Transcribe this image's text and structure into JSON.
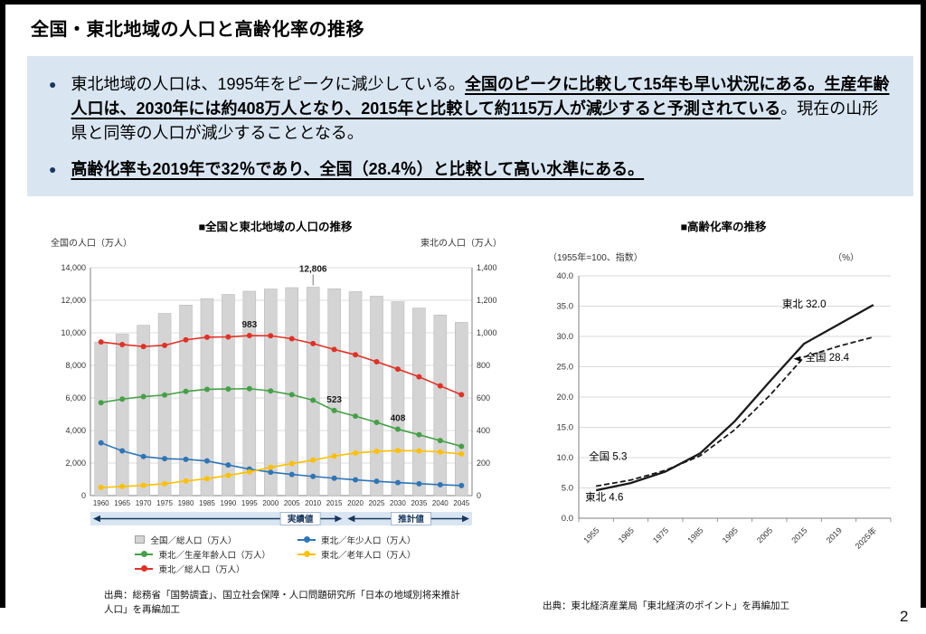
{
  "page": {
    "number": "2"
  },
  "title": "全国・東北地域の人口と高齢化率の推移",
  "colors": {
    "summary_bg": "#d9e6f2",
    "bullet": "#17375e"
  },
  "summary": {
    "bullet_glyph": "●",
    "bullets": [
      {
        "segments": [
          {
            "text": "東北地域の人口は、1995年をピークに減少している。",
            "emphasis": false
          },
          {
            "text": "全国のピークに比較して15年も早い状況にある。",
            "emphasis": true
          },
          {
            "text": "生産年齢人口は、2030年には約408万人となり、2015年と比較して約115万人が減少すると予測されている",
            "emphasis": true
          },
          {
            "text": "。現在の山形県と同等の人口が減少することとなる。",
            "emphasis": false
          }
        ]
      },
      {
        "segments": [
          {
            "text": "高齢化率も2019年で32％であり、全国（28.4％）と比較して高い水準にある。",
            "emphasis": true
          }
        ]
      }
    ]
  },
  "chart_data": [
    {
      "type": "bar",
      "title": "■全国と東北地域の人口の推移",
      "categories": [
        "1960",
        "1965",
        "1970",
        "1975",
        "1980",
        "1985",
        "1990",
        "1995",
        "2000",
        "2005",
        "2010",
        "2015",
        "2020",
        "2025",
        "2030",
        "2035",
        "2040",
        "2045"
      ],
      "left_axis": {
        "label": "全国の人口（万人）",
        "min": 0,
        "max": 14000,
        "step": 2000
      },
      "right_axis": {
        "label": "東北の人口（万人）",
        "min": 0,
        "max": 1400,
        "step": 200
      },
      "series": [
        {
          "id": "national-total",
          "name": "全国／総人口（万人）",
          "kind": "bar",
          "axis": "left",
          "color": "#d4d4d4",
          "values": [
            9430,
            9921,
            10467,
            11194,
            11706,
            12105,
            12361,
            12557,
            12693,
            12777,
            12806,
            12709,
            12532,
            12254,
            11913,
            11522,
            11092,
            10642
          ]
        },
        {
          "id": "tohoku-total",
          "name": "東北／総人口（万人）",
          "kind": "line",
          "axis": "right",
          "color": "#e03127",
          "values": [
            944,
            928,
            916,
            923,
            957,
            973,
            975,
            983,
            982,
            964,
            934,
            898,
            865,
            822,
            777,
            730,
            674,
            620
          ]
        },
        {
          "id": "tohoku-working-age",
          "name": "東北／生産年齢人口（万人）",
          "kind": "line",
          "axis": "right",
          "color": "#44a047",
          "values": [
            571,
            593,
            608,
            618,
            640,
            653,
            655,
            657,
            643,
            620,
            586,
            523,
            488,
            450,
            408,
            374,
            338,
            303
          ]
        },
        {
          "id": "tohoku-young",
          "name": "東北／年少人口（万人）",
          "kind": "line",
          "axis": "right",
          "color": "#2e75b6",
          "values": [
            324,
            275,
            240,
            227,
            223,
            213,
            188,
            163,
            144,
            130,
            118,
            107,
            97,
            88,
            80,
            73,
            67,
            62
          ]
        },
        {
          "id": "tohoku-elderly",
          "name": "東北／老年人口（万人）",
          "kind": "line",
          "axis": "right",
          "color": "#ffc000",
          "values": [
            50,
            56,
            63,
            73,
            90,
            104,
            124,
            146,
            174,
            197,
            218,
            243,
            262,
            272,
            277,
            275,
            268,
            256
          ]
        }
      ],
      "annotations": [
        {
          "text": "12,806",
          "series": 0,
          "category": "2010"
        },
        {
          "text": "983",
          "series": 1,
          "category": "1995"
        },
        {
          "text": "523",
          "series": 2,
          "category": "2015"
        },
        {
          "text": "408",
          "series": 2,
          "category": "2030"
        }
      ],
      "band": {
        "actual_label": "実績値",
        "forecast_label": "推計値",
        "split_index": 12,
        "fill": "#d9e6f2",
        "arrow_color": "#17375e"
      },
      "legend_columns": [
        [
          0,
          2,
          1
        ],
        [
          3,
          4
        ]
      ],
      "source": "出典：総務省「国勢調査」、国立社会保障・人口問題研究所「日本の地域別将来推計人口」を再編加工"
    },
    {
      "type": "line",
      "title": "■高齢化率の推移",
      "unit_left": "（1955年=100、指数）",
      "unit_right": "（%）",
      "categories": [
        "1955",
        "1965",
        "1975",
        "1985",
        "1995",
        "2005",
        "2015",
        "2019",
        "2025年"
      ],
      "y_axis": {
        "min": 0,
        "max": 40,
        "step": 5
      },
      "series": [
        {
          "id": "tohoku",
          "name": "東北",
          "style": "solid",
          "color": "#1a1a1a",
          "values": [
            4.6,
            5.8,
            7.7,
            10.7,
            16.0,
            22.5,
            28.8,
            32.0,
            35.2
          ]
        },
        {
          "id": "national",
          "name": "全国",
          "style": "dashed",
          "color": "#1a1a1a",
          "values": [
            5.3,
            6.3,
            7.9,
            10.3,
            14.6,
            20.2,
            26.6,
            28.4,
            29.9
          ]
        }
      ],
      "annotations": [
        {
          "text": "東北 32.0",
          "xi": 7,
          "dx": -14,
          "anchor": "end",
          "y": 34.8
        },
        {
          "text": "全国 28.4",
          "xi": 7,
          "dx": -37,
          "anchor": "start",
          "y": 26.0,
          "pointer": "left"
        },
        {
          "text": "全国 5.3",
          "xi": 0,
          "dx": -8,
          "anchor": "start",
          "y": 9.6
        },
        {
          "text": "東北 4.6",
          "xi": 0,
          "dx": -12,
          "anchor": "start",
          "y": 2.9
        }
      ],
      "source": "出典：東北経済産業局「東北経済のポイント」を再編加工"
    }
  ]
}
